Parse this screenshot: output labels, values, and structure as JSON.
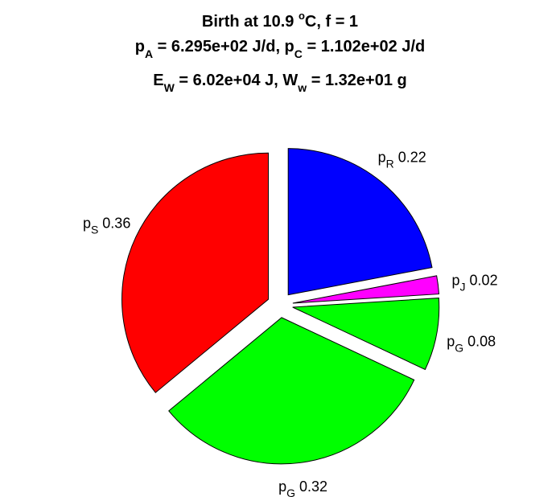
{
  "chart_data": {
    "type": "pie",
    "title_lines": [
      [
        {
          "text": "Birth at 10.9 "
        },
        {
          "text": "o",
          "script": "sup"
        },
        {
          "text": "C, f = 1"
        }
      ],
      [
        {
          "text": "p"
        },
        {
          "text": "A",
          "script": "sub"
        },
        {
          "text": " = 6.295e+02 J/d, p"
        },
        {
          "text": "C",
          "script": "sub"
        },
        {
          "text": " = 1.102e+02 J/d"
        }
      ],
      [
        {
          "text": "E"
        },
        {
          "text": "W",
          "script": "sub"
        },
        {
          "text": " = 6.02e+04 J, W"
        },
        {
          "text": "w",
          "script": "sub"
        },
        {
          "text": " = 1.32e+01 g"
        }
      ]
    ],
    "slices": [
      {
        "name": "p",
        "subscript": "R",
        "value_label": "0.22",
        "value": 0.22,
        "color": "#0000ff",
        "exploded": true
      },
      {
        "name": "p",
        "subscript": "J",
        "value_label": "0.02",
        "value": 0.02,
        "color": "#ff00ff",
        "exploded": true
      },
      {
        "name": "p",
        "subscript": "G",
        "value_label": "0.08",
        "value": 0.08,
        "color": "#00ff00",
        "exploded": true
      },
      {
        "name": "p",
        "subscript": "G",
        "value_label": "0.32",
        "value": 0.32,
        "color": "#00ff00",
        "exploded": true
      },
      {
        "name": "p",
        "subscript": "S",
        "value_label": "0.36",
        "value": 0.36,
        "color": "#ff0000",
        "exploded": true
      }
    ],
    "start_angle_deg": 0,
    "direction": "clockwise"
  }
}
